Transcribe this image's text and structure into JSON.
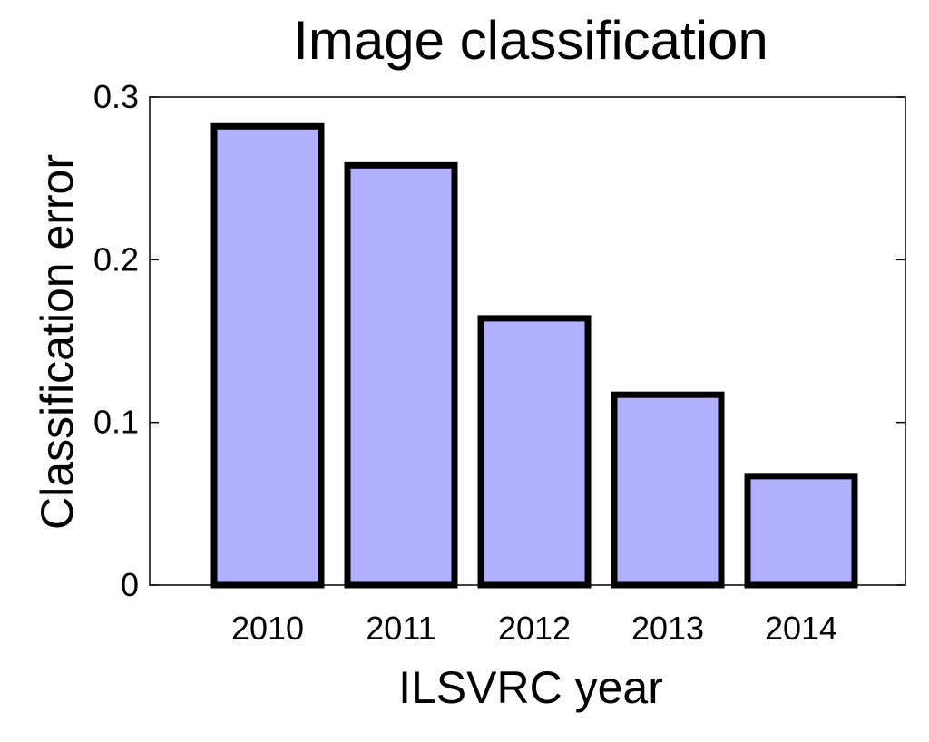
{
  "chart_data": {
    "type": "bar",
    "title": "Image classification",
    "xlabel": "ILSVRC year",
    "ylabel": "Classification error",
    "categories": [
      "2010",
      "2011",
      "2012",
      "2013",
      "2014"
    ],
    "values": [
      0.282,
      0.258,
      0.164,
      0.117,
      0.067
    ],
    "ylim": [
      0,
      0.3
    ],
    "yticks": [
      "0",
      "0.1",
      "0.2",
      "0.3"
    ],
    "ytick_values": [
      0,
      0.1,
      0.2,
      0.3
    ],
    "bar_color": "#b0b0ff",
    "grid": false,
    "legend": "none"
  }
}
